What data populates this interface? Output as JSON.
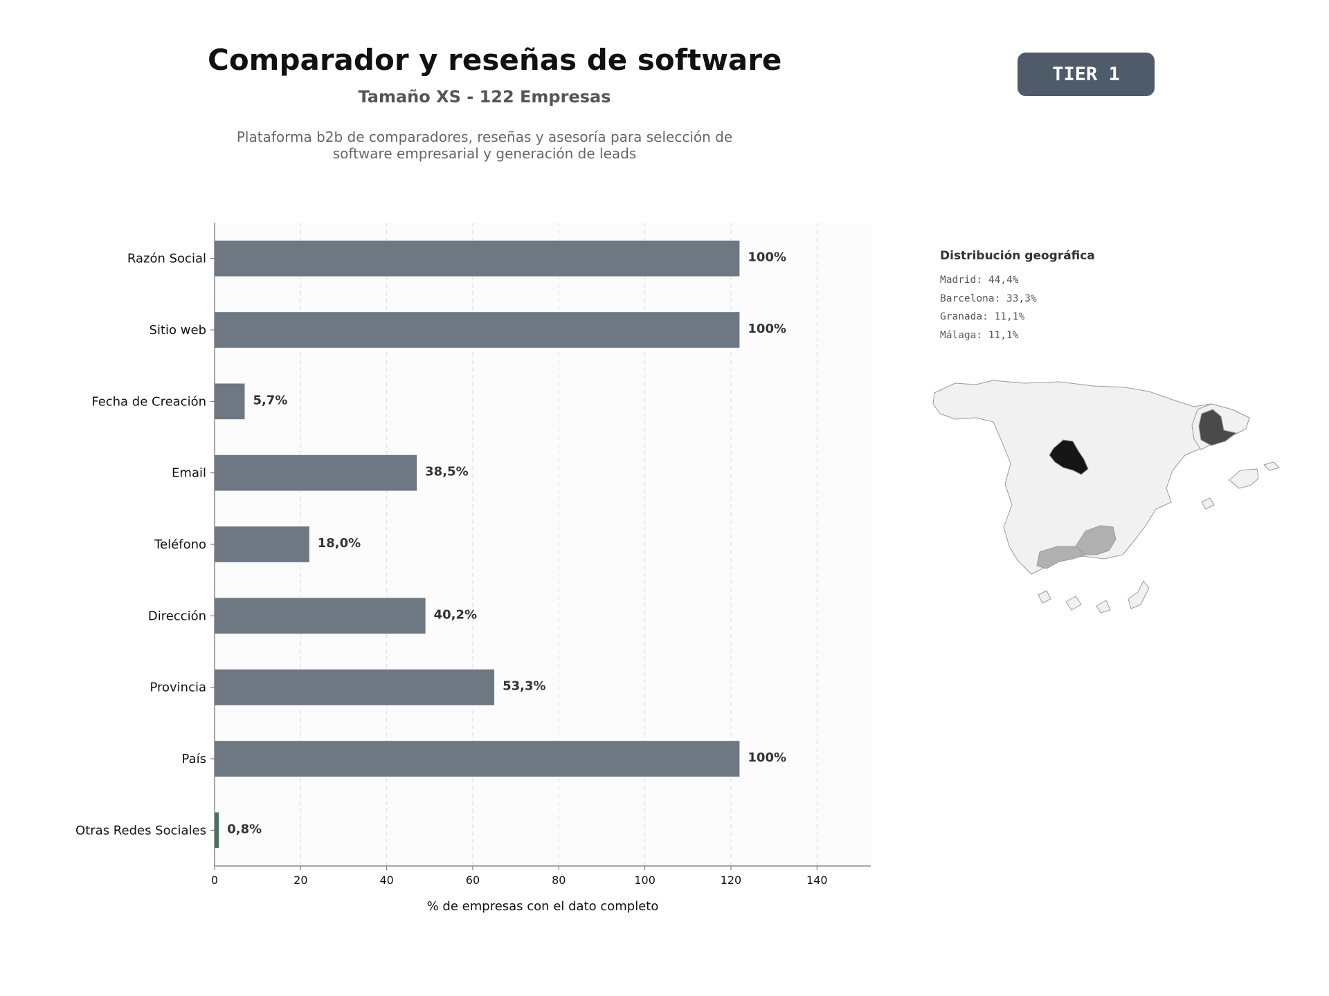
{
  "header": {
    "title": "Comparador y reseñas de software",
    "subtitle": "Tamaño XS - 122 Empresas",
    "description_line1": "Plataforma b2b de comparadores, reseñas y asesoría para selección de",
    "description_line2": "software empresarial y generación de leads",
    "tier": "TIER 1"
  },
  "geo": {
    "title": "Distribución geográfica",
    "items": [
      "Madrid: 44,4%",
      "Barcelona: 33,3%",
      "Granada: 11,1%",
      "Málaga: 11,1%"
    ]
  },
  "colors": {
    "bar": "#6e7882",
    "bar_highlight": "#4c7263",
    "badge": "#4f5b68",
    "madrid": "#161616",
    "barcelona": "#4a4a4a",
    "andalucia": "#b0b0b0",
    "region_default": "#f1f1f1"
  },
  "chart_data": {
    "type": "bar",
    "orientation": "horizontal",
    "categories": [
      "Razón Social",
      "Sitio web",
      "Fecha de Creación",
      "Email",
      "Teléfono",
      "Dirección",
      "Provincia",
      "País",
      "Otras Redes Sociales"
    ],
    "values": [
      122,
      122,
      7,
      47,
      22,
      49,
      65,
      122,
      1
    ],
    "labels": [
      "100%",
      "100%",
      "5,7%",
      "38,5%",
      "18,0%",
      "40,2%",
      "53,3%",
      "100%",
      "0,8%"
    ],
    "xlabel": "% de empresas con el dato completo",
    "xticks": [
      0,
      20,
      40,
      60,
      80,
      100,
      120,
      140
    ],
    "xlim": [
      0,
      152.5
    ],
    "grid": true
  }
}
